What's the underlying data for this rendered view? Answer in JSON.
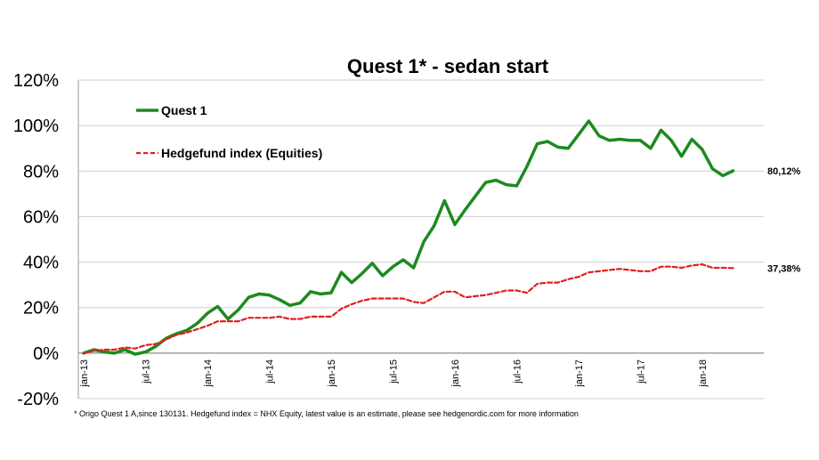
{
  "chart_data": {
    "type": "line",
    "title": "Quest 1* - sedan start",
    "footnote": "* Origo Quest 1 A,since 130131. Hedgefund index = NHX Equity, latest value is an estimate, please see hedgenordic.com  for more information",
    "y_ticks": [
      "120%",
      "100%",
      "80%",
      "60%",
      "40%",
      "20%",
      "0%",
      "-20%"
    ],
    "ylim": [
      -20,
      120
    ],
    "grid": true,
    "legend_position": "top-left",
    "x_ticks": [
      {
        "label": "jan-13",
        "index": 0
      },
      {
        "label": "jul-13",
        "index": 6
      },
      {
        "label": "jan-14",
        "index": 12
      },
      {
        "label": "jul-14",
        "index": 18
      },
      {
        "label": "jan-15",
        "index": 24
      },
      {
        "label": "jul-15",
        "index": 30
      },
      {
        "label": "jan-16",
        "index": 36
      },
      {
        "label": "jul-16",
        "index": 42
      },
      {
        "label": "jan-17",
        "index": 48
      },
      {
        "label": "jul-17",
        "index": 54
      },
      {
        "label": "jan-18",
        "index": 60
      }
    ],
    "series": [
      {
        "name": "Quest 1",
        "color": "#1e8a1e",
        "style": "solid",
        "end_label": "80,12%",
        "values": [
          0,
          1.5,
          0.5,
          0,
          1.5,
          -0.5,
          0.5,
          3,
          6.5,
          8.5,
          10,
          13,
          17.5,
          20.5,
          15,
          19,
          24.5,
          26,
          25.5,
          23.5,
          21,
          22,
          27,
          26,
          26.5,
          35.5,
          31,
          35,
          39.5,
          34,
          38,
          41,
          37.5,
          49,
          56,
          67,
          56.5,
          63,
          69,
          75,
          76,
          74,
          73.5,
          82,
          92,
          93,
          90.5,
          90,
          96,
          102,
          95.5,
          93.5,
          94,
          93.5,
          93.5,
          90,
          98,
          93.5,
          86.5,
          94,
          89.5,
          81,
          78,
          80.12
        ]
      },
      {
        "name": "Hedgefund index (Equities)",
        "color": "#e02020",
        "style": "dashed",
        "end_label": "37,38%",
        "values": [
          0,
          1,
          1.5,
          1.5,
          2.5,
          2,
          3.5,
          4,
          6,
          8,
          9,
          10.5,
          12,
          14,
          14,
          14,
          15.5,
          15.5,
          15.5,
          16,
          15,
          15,
          16,
          16,
          16,
          19.5,
          21.5,
          23,
          24,
          24,
          24,
          24,
          22.5,
          22,
          24.5,
          27,
          27,
          24.5,
          25,
          25.5,
          26.5,
          27.5,
          27.5,
          26.5,
          30.5,
          31,
          31,
          32.5,
          33.5,
          35.5,
          36,
          36.5,
          37,
          36.5,
          36,
          36,
          38,
          38,
          37.5,
          38.5,
          39,
          37.5,
          37.5,
          37.38
        ]
      }
    ]
  }
}
